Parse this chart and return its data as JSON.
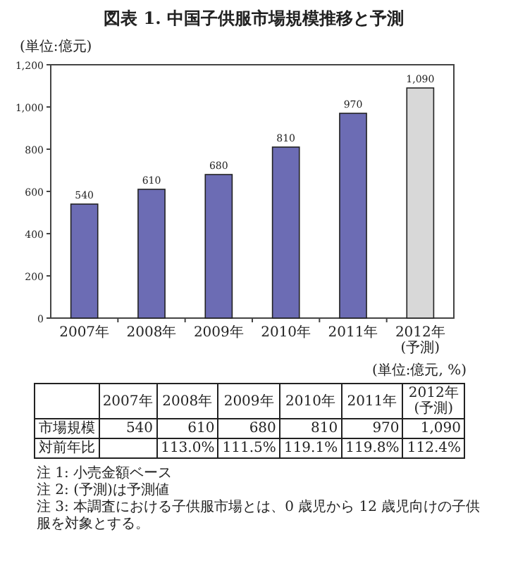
{
  "chart_data": {
    "type": "bar",
    "title": "図表 1. 中国子供服市場規模推移と予測",
    "ylabel": "(単位:億元)",
    "categories": [
      "2007年",
      "2008年",
      "2009年",
      "2010年",
      "2011年",
      "2012年(予測)"
    ],
    "values": [
      540,
      610,
      680,
      810,
      970,
      1090
    ],
    "colors": [
      "#6c6cb4",
      "#6c6cb4",
      "#6c6cb4",
      "#6c6cb4",
      "#6c6cb4",
      "#d8d8d8"
    ],
    "ylim": [
      0,
      1200
    ],
    "yticks": [
      0,
      200,
      400,
      600,
      800,
      {
        "value": 1000,
        "label": "1,000"
      },
      {
        "value": 1200,
        "label": "1,200"
      }
    ],
    "value_labels": [
      "540",
      "610",
      "680",
      "810",
      "970",
      "1,090"
    ],
    "annotations": [
      "(単位:億元, %)",
      "市場規模",
      "対前年比",
      "113.0%",
      "111.5%",
      "119.1%",
      "119.8%",
      "112.4%",
      "注 1: 小売金額ベース",
      "注 2: (予測)は予測値",
      "注 3: 本調査における子供服市場とは、0 歳児から 12 歳児向けの子供服を対象とする。"
    ]
  }
}
